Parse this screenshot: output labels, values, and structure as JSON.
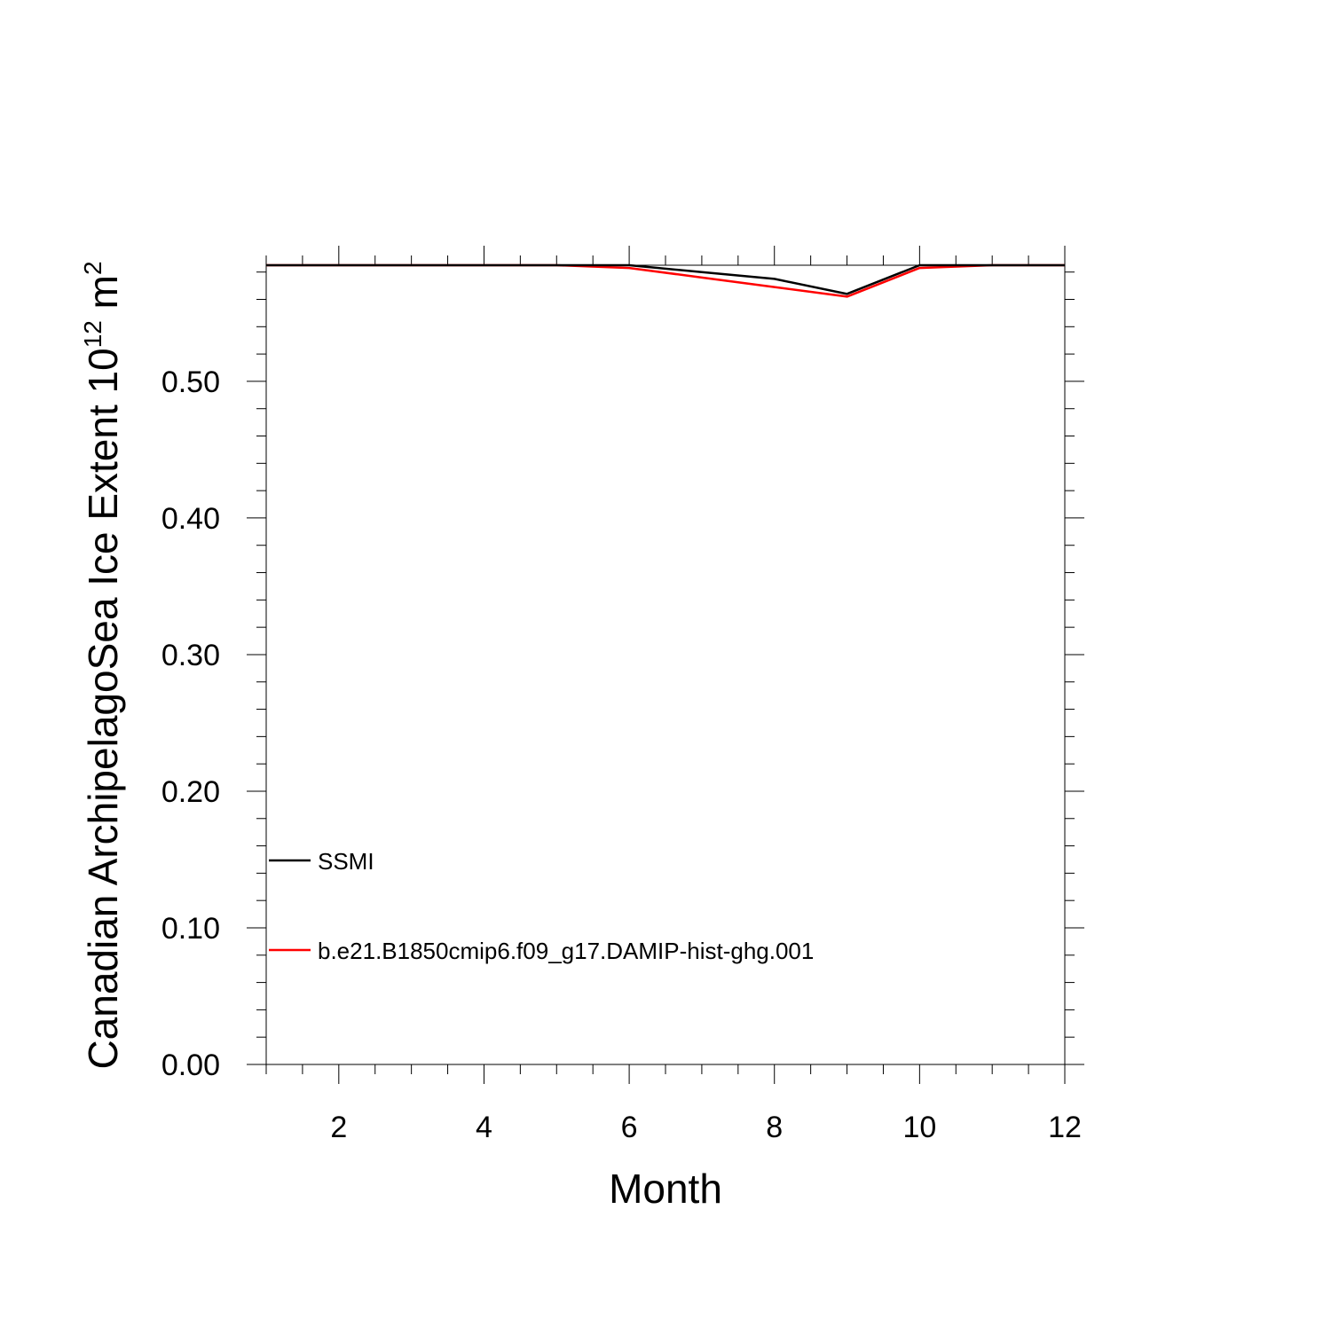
{
  "chart_data": {
    "type": "line",
    "title": "",
    "xlabel": "Month",
    "ylabel": {
      "text": "Canadian ArchipelagoSea Ice Extent 10",
      "exponent": "12",
      "unit": " m",
      "unit_exponent": "2"
    },
    "x": [
      1,
      2,
      3,
      4,
      5,
      6,
      7,
      8,
      9,
      10,
      11,
      12
    ],
    "xlim": [
      1,
      12
    ],
    "ylim": [
      0,
      0.585
    ],
    "xticks": [
      2,
      4,
      6,
      8,
      10,
      12
    ],
    "xtick_labels": [
      "2",
      "4",
      "6",
      "8",
      "10",
      "12"
    ],
    "yticks": [
      0.0,
      0.1,
      0.2,
      0.3,
      0.4,
      0.5
    ],
    "ytick_labels": [
      "0.00",
      "0.10",
      "0.20",
      "0.30",
      "0.40",
      "0.50"
    ],
    "grid": false,
    "legend_position": "lower-left",
    "series": [
      {
        "name": "SSMI",
        "color": "#000000",
        "values": [
          0.585,
          0.585,
          0.585,
          0.585,
          0.585,
          0.585,
          0.58,
          0.575,
          0.564,
          0.585,
          0.585,
          0.585
        ]
      },
      {
        "name": "b.e21.B1850cmip6.f09_g17.DAMIP-hist-ghg.001",
        "color": "#ff0000",
        "values": [
          0.585,
          0.585,
          0.585,
          0.585,
          0.585,
          0.583,
          0.576,
          0.569,
          0.562,
          0.583,
          0.585,
          0.585
        ]
      }
    ]
  }
}
